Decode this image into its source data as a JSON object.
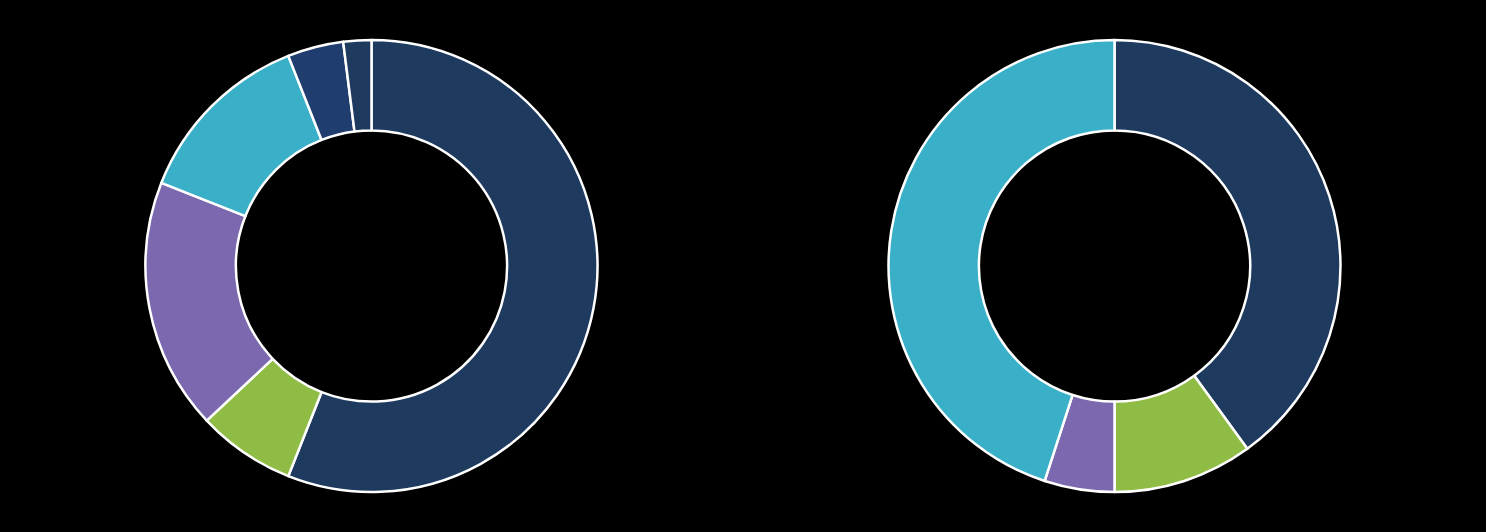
{
  "chart_data": [
    {
      "type": "pie",
      "values": [
        56,
        7,
        18,
        13,
        4,
        2
      ],
      "colors": [
        "#1e3a5f",
        "#8fbc45",
        "#7b68ae",
        "#3ab0c8",
        "#1f3d6e",
        "#1e3a5f"
      ]
    },
    {
      "type": "pie",
      "values": [
        40,
        10,
        5,
        45
      ],
      "colors": [
        "#1e3a5f",
        "#8fbc45",
        "#7b68ae",
        "#3ab0c8"
      ]
    }
  ]
}
